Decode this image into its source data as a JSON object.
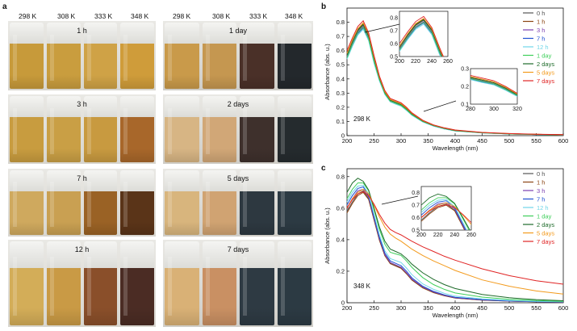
{
  "panel_a": {
    "letter": "a",
    "temperatures": [
      "298 K",
      "308 K",
      "333 K",
      "348 K"
    ],
    "left_rows": [
      {
        "label": "1 h",
        "colors": [
          "#c79a3a",
          "#c99d3e",
          "#cfa246",
          "#cf9c3a"
        ]
      },
      {
        "label": "3 h",
        "colors": [
          "#c89c3f",
          "#c99f45",
          "#c89a40",
          "#a8672a"
        ]
      },
      {
        "label": "7 h",
        "colors": [
          "#cfa95e",
          "#c9a052",
          "#9a6225",
          "#5a3418"
        ]
      },
      {
        "label": "12 h",
        "colors": [
          "#d3ad58",
          "#c99a45",
          "#8a4f2a",
          "#4b2c24"
        ]
      }
    ],
    "right_rows": [
      {
        "label": "1 day",
        "colors": [
          "#c99a4a",
          "#c59750",
          "#4a3028",
          "#23282c"
        ]
      },
      {
        "label": "2 days",
        "colors": [
          "#d7b584",
          "#d1a777",
          "#3e302c",
          "#252b2e"
        ]
      },
      {
        "label": "5 days",
        "colors": [
          "#d8b57d",
          "#d0a372",
          "#2d3840",
          "#2c3a43"
        ]
      },
      {
        "label": "7 days",
        "colors": [
          "#d9b176",
          "#c99063",
          "#2e3a43",
          "#2c3a43"
        ]
      }
    ]
  },
  "chart_data": [
    {
      "type": "line",
      "panel": "b",
      "annotation": "298 K",
      "xlabel": "Wavelength (nm)",
      "ylabel": "Absorbance (abs. u.)",
      "xlim": [
        200,
        600
      ],
      "ylim": [
        0,
        0.9
      ],
      "xticks": [
        200,
        250,
        300,
        350,
        400,
        450,
        500,
        550,
        600
      ],
      "yticks": [
        0,
        0.1,
        0.2,
        0.3,
        0.4,
        0.5,
        0.6,
        0.7,
        0.8
      ],
      "x": [
        200,
        210,
        220,
        230,
        240,
        250,
        260,
        270,
        280,
        290,
        300,
        310,
        320,
        340,
        360,
        380,
        400,
        450,
        500,
        550,
        600
      ],
      "series": [
        {
          "name": "0 h",
          "color": "#555555",
          "values": [
            0.57,
            0.66,
            0.74,
            0.78,
            0.7,
            0.54,
            0.4,
            0.3,
            0.25,
            0.235,
            0.22,
            0.19,
            0.15,
            0.1,
            0.07,
            0.05,
            0.035,
            0.02,
            0.012,
            0.008,
            0.005
          ]
        },
        {
          "name": "1 h",
          "color": "#8b4513",
          "values": [
            0.58,
            0.67,
            0.75,
            0.79,
            0.71,
            0.55,
            0.41,
            0.31,
            0.255,
            0.24,
            0.225,
            0.195,
            0.155,
            0.105,
            0.073,
            0.052,
            0.037,
            0.021,
            0.013,
            0.009,
            0.006
          ]
        },
        {
          "name": "3 h",
          "color": "#7b3fb0",
          "values": [
            0.56,
            0.65,
            0.73,
            0.77,
            0.69,
            0.53,
            0.4,
            0.3,
            0.245,
            0.23,
            0.215,
            0.185,
            0.15,
            0.1,
            0.07,
            0.05,
            0.035,
            0.02,
            0.012,
            0.008,
            0.005
          ]
        },
        {
          "name": "7 h",
          "color": "#1f4fd1",
          "values": [
            0.55,
            0.64,
            0.72,
            0.76,
            0.68,
            0.52,
            0.39,
            0.295,
            0.24,
            0.225,
            0.21,
            0.18,
            0.145,
            0.098,
            0.068,
            0.048,
            0.034,
            0.02,
            0.012,
            0.008,
            0.005
          ]
        },
        {
          "name": "12 h",
          "color": "#6fd6e8",
          "values": [
            0.54,
            0.63,
            0.71,
            0.75,
            0.67,
            0.51,
            0.385,
            0.29,
            0.238,
            0.222,
            0.208,
            0.178,
            0.143,
            0.097,
            0.067,
            0.047,
            0.033,
            0.019,
            0.012,
            0.008,
            0.005
          ]
        },
        {
          "name": "1 day",
          "color": "#3ecf5a",
          "values": [
            0.55,
            0.645,
            0.725,
            0.765,
            0.685,
            0.525,
            0.395,
            0.298,
            0.243,
            0.228,
            0.213,
            0.183,
            0.148,
            0.1,
            0.07,
            0.05,
            0.035,
            0.02,
            0.012,
            0.008,
            0.005
          ]
        },
        {
          "name": "2 days",
          "color": "#1e6b2a",
          "values": [
            0.57,
            0.665,
            0.745,
            0.785,
            0.705,
            0.545,
            0.405,
            0.305,
            0.25,
            0.235,
            0.22,
            0.19,
            0.153,
            0.103,
            0.072,
            0.051,
            0.036,
            0.021,
            0.013,
            0.009,
            0.006
          ]
        },
        {
          "name": "5 days",
          "color": "#f39a1c",
          "values": [
            0.58,
            0.675,
            0.755,
            0.795,
            0.715,
            0.555,
            0.412,
            0.31,
            0.255,
            0.24,
            0.225,
            0.195,
            0.157,
            0.106,
            0.074,
            0.053,
            0.038,
            0.022,
            0.014,
            0.009,
            0.006
          ]
        },
        {
          "name": "7 days",
          "color": "#e02424",
          "values": [
            0.6,
            0.69,
            0.77,
            0.81,
            0.725,
            0.565,
            0.42,
            0.318,
            0.262,
            0.247,
            0.232,
            0.2,
            0.161,
            0.109,
            0.076,
            0.055,
            0.04,
            0.023,
            0.015,
            0.01,
            0.007
          ]
        }
      ],
      "inset1": {
        "xlim": [
          200,
          260
        ],
        "ylim": [
          0.5,
          0.85
        ],
        "xticks": [
          200,
          220,
          240,
          260
        ],
        "yticks": [
          0.5,
          0.6,
          0.7,
          0.8
        ]
      },
      "inset2": {
        "xlim": [
          280,
          320
        ],
        "ylim": [
          0.1,
          0.3
        ],
        "xticks": [
          280,
          300,
          320
        ],
        "yticks": [
          0.1,
          0.2,
          0.3
        ]
      }
    },
    {
      "type": "line",
      "panel": "c",
      "annotation": "348 K",
      "xlabel": "Wavelength (nm)",
      "ylabel": "Absorbance (abs. u.)",
      "xlim": [
        200,
        600
      ],
      "ylim": [
        0,
        0.85
      ],
      "xticks": [
        200,
        250,
        300,
        350,
        400,
        450,
        500,
        550,
        600
      ],
      "yticks": [
        0,
        0.2,
        0.4,
        0.6,
        0.8
      ],
      "x": [
        200,
        210,
        220,
        230,
        240,
        250,
        260,
        270,
        280,
        290,
        300,
        310,
        320,
        340,
        360,
        380,
        400,
        450,
        500,
        550,
        600
      ],
      "series": [
        {
          "name": "0 h",
          "color": "#555555",
          "values": [
            0.58,
            0.64,
            0.69,
            0.71,
            0.66,
            0.53,
            0.4,
            0.3,
            0.25,
            0.235,
            0.22,
            0.185,
            0.145,
            0.095,
            0.065,
            0.045,
            0.03,
            0.017,
            0.01,
            0.006,
            0.004
          ]
        },
        {
          "name": "1 h",
          "color": "#8b4513",
          "values": [
            0.57,
            0.63,
            0.68,
            0.7,
            0.655,
            0.525,
            0.395,
            0.298,
            0.248,
            0.233,
            0.218,
            0.184,
            0.144,
            0.094,
            0.064,
            0.044,
            0.03,
            0.017,
            0.01,
            0.006,
            0.004
          ]
        },
        {
          "name": "3 h",
          "color": "#7b3fb0",
          "values": [
            0.6,
            0.66,
            0.71,
            0.72,
            0.67,
            0.535,
            0.405,
            0.305,
            0.255,
            0.24,
            0.225,
            0.19,
            0.15,
            0.1,
            0.068,
            0.047,
            0.032,
            0.018,
            0.011,
            0.007,
            0.004
          ]
        },
        {
          "name": "7 h",
          "color": "#1f4fd1",
          "values": [
            0.62,
            0.68,
            0.725,
            0.735,
            0.68,
            0.545,
            0.415,
            0.315,
            0.265,
            0.25,
            0.235,
            0.2,
            0.158,
            0.105,
            0.072,
            0.05,
            0.035,
            0.02,
            0.012,
            0.007,
            0.005
          ]
        },
        {
          "name": "12 h",
          "color": "#6fd6e8",
          "values": [
            0.64,
            0.7,
            0.74,
            0.745,
            0.69,
            0.56,
            0.43,
            0.33,
            0.28,
            0.268,
            0.255,
            0.22,
            0.178,
            0.12,
            0.085,
            0.06,
            0.042,
            0.024,
            0.015,
            0.009,
            0.006
          ]
        },
        {
          "name": "1 day",
          "color": "#3ecf5a",
          "values": [
            0.66,
            0.72,
            0.76,
            0.76,
            0.71,
            0.59,
            0.465,
            0.37,
            0.32,
            0.31,
            0.3,
            0.265,
            0.225,
            0.16,
            0.115,
            0.085,
            0.062,
            0.036,
            0.022,
            0.014,
            0.009
          ]
        },
        {
          "name": "2 days",
          "color": "#1e6b2a",
          "values": [
            0.7,
            0.76,
            0.79,
            0.77,
            0.715,
            0.6,
            0.48,
            0.39,
            0.34,
            0.325,
            0.31,
            0.28,
            0.245,
            0.19,
            0.148,
            0.115,
            0.09,
            0.052,
            0.032,
            0.02,
            0.013
          ]
        },
        {
          "name": "5 days",
          "color": "#f39a1c",
          "values": [
            0.6,
            0.66,
            0.7,
            0.72,
            0.69,
            0.62,
            0.545,
            0.48,
            0.435,
            0.41,
            0.39,
            0.365,
            0.34,
            0.3,
            0.265,
            0.235,
            0.205,
            0.145,
            0.105,
            0.075,
            0.055
          ]
        },
        {
          "name": "7 days",
          "color": "#e02424",
          "values": [
            0.6,
            0.655,
            0.69,
            0.705,
            0.68,
            0.625,
            0.56,
            0.505,
            0.465,
            0.445,
            0.43,
            0.41,
            0.39,
            0.355,
            0.325,
            0.295,
            0.27,
            0.215,
            0.172,
            0.14,
            0.118
          ]
        }
      ],
      "inset1": {
        "xlim": [
          200,
          260
        ],
        "ylim": [
          0.5,
          0.85
        ],
        "xticks": [
          200,
          220,
          240,
          260
        ],
        "yticks": [
          0.5,
          0.6,
          0.7,
          0.8
        ]
      }
    }
  ]
}
